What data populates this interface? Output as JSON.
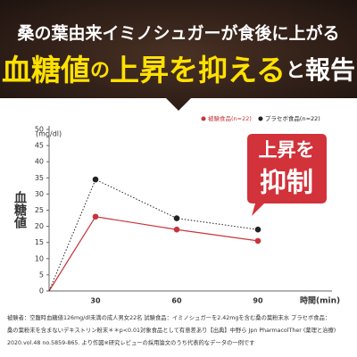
{
  "chart_data": {
    "type": "line",
    "headline": "桑の葉由来イミノシュガーが食後に上がる",
    "title_parts": [
      "血糖値",
      "の",
      "上昇を抑える",
      "と",
      "報告"
    ],
    "y_label": "血糖値",
    "y_unit": "(mg/dl)",
    "x_label": "時間(min)",
    "categories": [
      null,
      "30",
      "60",
      "90"
    ],
    "series": [
      {
        "name": "被験食品(n=22)",
        "color": "#c8343a",
        "values": [
          0,
          23,
          19,
          15.5
        ]
      },
      {
        "name": "プラセボ食品(n=22)",
        "color": "#222222",
        "values": [
          0,
          34.5,
          22.5,
          19
        ]
      }
    ],
    "ylim": [
      0,
      50
    ],
    "yticks": [
      0,
      5,
      10,
      15,
      20,
      25,
      30,
      35,
      40,
      45,
      50
    ],
    "callout": [
      "上昇を",
      "抑制"
    ],
    "notes": [
      "被験者：空腹時血糖値126mg/dl未満の成人男女22名 試験食品：イミノシュガーを2.42mgを含む桑の葉粉末水 プラセボ食品：",
      "桑の葉粉末を含まないデキストリン粉末＊＊p<0.01対象食品として有意差あり【出典】中野ら Jpn PharmacolTher (薬理と治療)",
      "2020.vol.48 no.5859-865. より作図※研究レビューの採用論文のうち代表的なデータの一例です"
    ]
  }
}
